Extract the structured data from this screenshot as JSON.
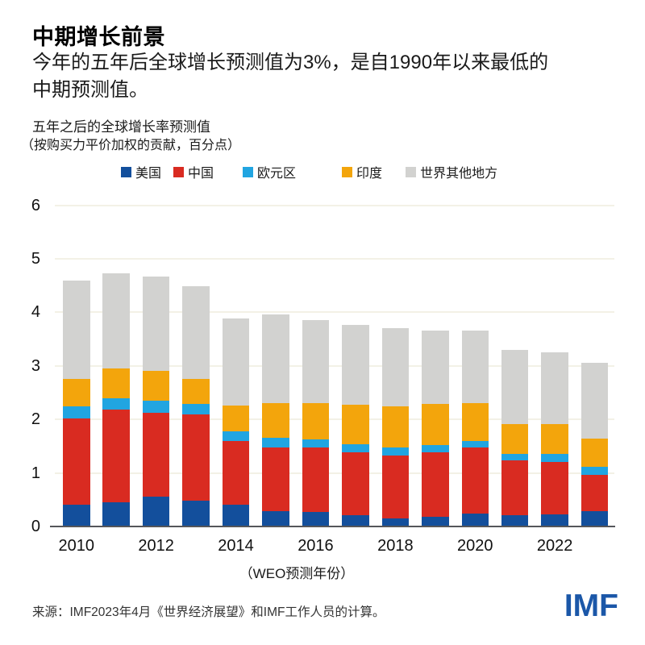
{
  "header": {
    "title": "中期增长前景",
    "subtitle_line1": "今年的五年后全球增长预测值为3%，是自1990年以来最低的",
    "subtitle_line2": "中期预测值。",
    "note_line1": "五年之后的全球增长率预测值",
    "note_line2": "（按购买力平价加权的贡献，百分点）"
  },
  "chart_data": {
    "type": "bar",
    "stacked": true,
    "title": "五年之后的全球增长率预测值",
    "subtitle": "（按购买力平价加权的贡献，百分点）",
    "xlabel": "（WEO预测年份）",
    "ylabel": "",
    "ylim": [
      0,
      6
    ],
    "ytick_labels": [
      "0",
      "1",
      "2",
      "3",
      "4",
      "5",
      "6"
    ],
    "grid": "horizontal",
    "gridline_color": "#f3f1e6",
    "axis_color": "#55565a",
    "legend_position": "top",
    "categories": [
      "2010",
      "2011",
      "2012",
      "2013",
      "2014",
      "2015",
      "2016",
      "2017",
      "2018",
      "2019",
      "2020",
      "2021",
      "2022",
      "2023"
    ],
    "xtick_labels": [
      "2010",
      "2012",
      "2014",
      "2016",
      "2018",
      "2020",
      "2022"
    ],
    "series": [
      {
        "key": "us",
        "name": "美国",
        "color": "#134f9c",
        "values": [
          0.41,
          0.45,
          0.56,
          0.48,
          0.4,
          0.28,
          0.27,
          0.21,
          0.15,
          0.18,
          0.24,
          0.21,
          0.23,
          0.29
        ]
      },
      {
        "key": "china",
        "name": "中国",
        "color": "#d92b21",
        "values": [
          1.61,
          1.73,
          1.57,
          1.62,
          1.2,
          1.2,
          1.21,
          1.18,
          1.17,
          1.2,
          1.23,
          1.02,
          0.98,
          0.67
        ]
      },
      {
        "key": "euro-area",
        "name": "欧元区",
        "color": "#21a5e1",
        "values": [
          0.23,
          0.22,
          0.22,
          0.19,
          0.18,
          0.17,
          0.15,
          0.15,
          0.15,
          0.14,
          0.13,
          0.13,
          0.14,
          0.15
        ]
      },
      {
        "key": "india",
        "name": "印度",
        "color": "#f3a50c",
        "values": [
          0.5,
          0.55,
          0.55,
          0.47,
          0.48,
          0.65,
          0.67,
          0.73,
          0.78,
          0.77,
          0.7,
          0.55,
          0.56,
          0.53
        ]
      },
      {
        "key": "rest-of-world",
        "name": "世界其他地方",
        "color": "#d2d2d0",
        "values": [
          1.85,
          1.78,
          1.77,
          1.73,
          1.62,
          1.66,
          1.56,
          1.49,
          1.45,
          1.37,
          1.36,
          1.39,
          1.35,
          1.42
        ]
      }
    ],
    "totals": [
      4.6,
      4.73,
      4.67,
      4.49,
      3.88,
      3.96,
      3.86,
      3.76,
      3.7,
      3.66,
      3.66,
      3.3,
      3.26,
      3.06
    ]
  },
  "footer": {
    "source": "来源：IMF2023年4月《世界经济展望》和IMF工作人员的计算。",
    "logo": "IMF",
    "logo_color": "#1b57a8"
  }
}
